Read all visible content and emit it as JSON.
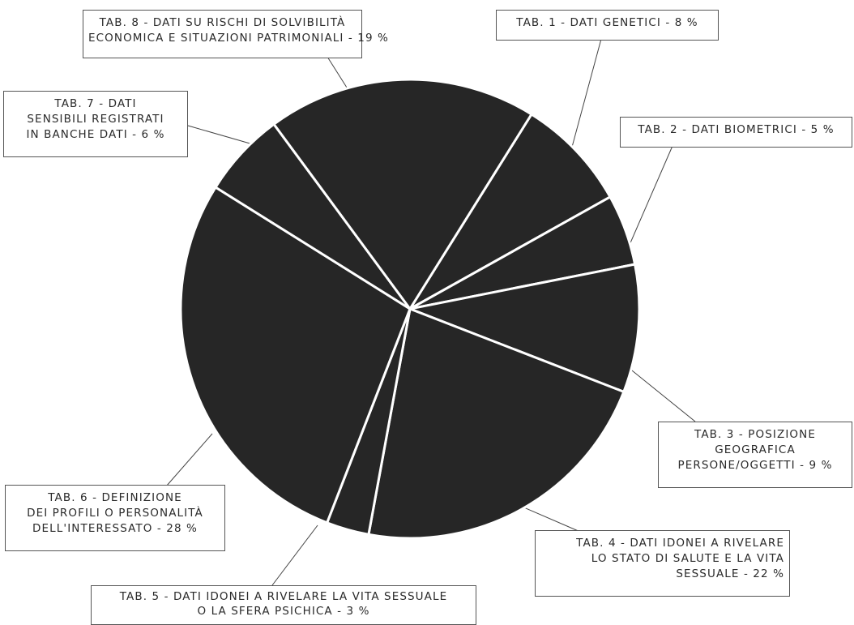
{
  "chart_data": {
    "type": "pie",
    "slice_color": "#262626",
    "separator_color": "#ffffff",
    "slices": [
      {
        "label": "TAB. 1 - DATI GENETICI - 8 %",
        "value": 8
      },
      {
        "label": "TAB. 2 - DATI BIOMETRICI - 5 %",
        "value": 5
      },
      {
        "label": "TAB. 3 - POSIZIONE GEOGRAFICA PERSONE/OGGETTI - 9 %",
        "value": 9
      },
      {
        "label": "TAB. 4 - DATI IDONEI A RIVELARE LO STATO DI SALUTE E LA VITA SESSUALE - 22 %",
        "value": 22
      },
      {
        "label": "TAB. 5 - DATI IDONEI A RIVELARE LA VITA SESSUALE O LA SFERA PSICHICA - 3 %",
        "value": 3
      },
      {
        "label": "TAB. 6 - DEFINIZIONE DEI PROFILI O PERSONALITÀ DELL'INTERESSATO - 28 %",
        "value": 28
      },
      {
        "label": "TAB. 7 - DATI SENSIBILI REGISTRATI IN BANCHE DATI - 6 %",
        "value": 6
      },
      {
        "label": "TAB. 8 - DATI SU RISCHI DI SOLVIBILITÀ ECONOMICA E SITUAZIONI PATRIMONIALI - 19 %",
        "value": 19
      }
    ]
  },
  "callouts": {
    "tab8": {
      "line1": "TAB. 8 - DATI SU RISCHI DI SOLVIBILITÀ",
      "line2": "ECONOMICA E SITUAZIONI PATRIMONIALI - 19 %"
    },
    "tab1": {
      "line1": "TAB. 1 - DATI GENETICI - 8 %"
    },
    "tab7": {
      "line1": "TAB. 7 - DATI",
      "line2": "SENSIBILI REGISTRATI",
      "line3": "IN BANCHE DATI - 6 %"
    },
    "tab2": {
      "line1": "TAB. 2 - DATI BIOMETRICI - 5 %"
    },
    "tab3": {
      "line1": "TAB. 3 - POSIZIONE",
      "line2": "GEOGRAFICA",
      "line3": "PERSONE/OGGETTI - 9 %"
    },
    "tab6": {
      "line1": "TAB. 6 - DEFINIZIONE",
      "line2": "DEI PROFILI O PERSONALITÀ",
      "line3": "DELL'INTERESSATO - 28 %"
    },
    "tab4": {
      "line1": "TAB. 4 - DATI IDONEI A RIVELARE",
      "line2": "LO STATO DI SALUTE E LA VITA",
      "line3": "SESSUALE - 22 %"
    },
    "tab5": {
      "line1": "TAB. 5 - DATI IDONEI A RIVELARE LA VITA SESSUALE",
      "line2": "O LA SFERA PSICHICA - 3 %"
    }
  }
}
